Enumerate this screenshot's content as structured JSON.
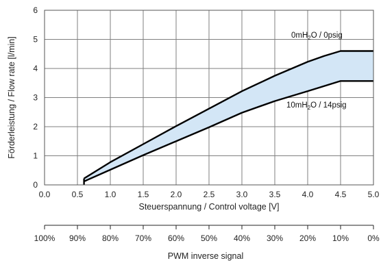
{
  "chart_data": {
    "type": "area",
    "xlabel": "Steuerspannung / Control voltage [V]",
    "ylabel": "Förderleistung / Flow rate [l/min]",
    "xlim": [
      0,
      5
    ],
    "ylim": [
      0,
      6
    ],
    "xticks": [
      "0.0",
      "0.5",
      "1.0",
      "1.5",
      "2.0",
      "2.5",
      "3.0",
      "3.5",
      "4.0",
      "4.5",
      "5.0"
    ],
    "yticks": [
      "0",
      "1",
      "2",
      "3",
      "4",
      "5",
      "6"
    ],
    "grid": true,
    "series": [
      {
        "name": "0mH2O / 0psig",
        "x": [
          0.6,
          1.0,
          1.5,
          2.0,
          2.5,
          3.0,
          3.5,
          4.0,
          4.25,
          4.5,
          5.0
        ],
        "y": [
          0.22,
          0.78,
          1.4,
          2.02,
          2.62,
          3.22,
          3.75,
          4.23,
          4.43,
          4.6,
          4.6
        ]
      },
      {
        "name": "10mH2O / 14psig",
        "x": [
          0.6,
          1.0,
          1.5,
          2.0,
          2.5,
          3.0,
          3.5,
          4.0,
          4.5,
          5.0
        ],
        "y": [
          0.12,
          0.52,
          1.02,
          1.5,
          1.98,
          2.48,
          2.88,
          3.22,
          3.57,
          3.57
        ]
      }
    ],
    "vertical_segment": {
      "x": 0.6,
      "y": [
        0,
        0.22
      ]
    },
    "annotations": [
      {
        "id": "top",
        "base": "0mH",
        "sub": "2",
        "rest": "O / 0psig"
      },
      {
        "id": "bottom",
        "base": "10mH",
        "sub": "2",
        "rest": "O / 14psig"
      }
    ],
    "secondary_axis": {
      "label": "PWM inverse signal",
      "ticks": [
        "100%",
        "90%",
        "80%",
        "70%",
        "60%",
        "50%",
        "40%",
        "30%",
        "20%",
        "10%",
        "0%"
      ]
    },
    "colors": {
      "fill": "#d3e6f6",
      "line": "#000000",
      "grid": "#7f7f7f"
    }
  }
}
